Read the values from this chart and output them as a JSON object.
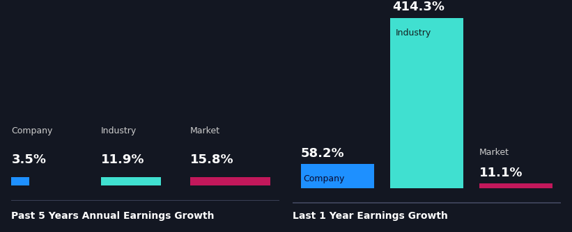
{
  "background_color": "#131722",
  "left_chart": {
    "title": "Past 5 Years Annual Earnings Growth",
    "bars": [
      {
        "label": "Company",
        "value": 3.5,
        "color": "#1E90FF",
        "display": "3.5%"
      },
      {
        "label": "Industry",
        "value": 11.9,
        "color": "#40E0D0",
        "display": "11.9%"
      },
      {
        "label": "Market",
        "value": 15.8,
        "color": "#C2185B",
        "display": "15.8%"
      }
    ]
  },
  "right_chart": {
    "title": "Last 1 Year Earnings Growth",
    "bars": [
      {
        "label": "Company",
        "value": 58.2,
        "color": "#1E90FF",
        "display": "58.2%"
      },
      {
        "label": "Industry",
        "value": 414.3,
        "color": "#40E0D0",
        "display": "414.3%"
      },
      {
        "label": "Market",
        "value": 11.1,
        "color": "#C2185B",
        "display": "11.1%"
      }
    ]
  },
  "text_color": "#FFFFFF",
  "label_color": "#CCCCCC",
  "title_font_size": 10,
  "value_font_size": 13,
  "bar_label_font_size": 9
}
